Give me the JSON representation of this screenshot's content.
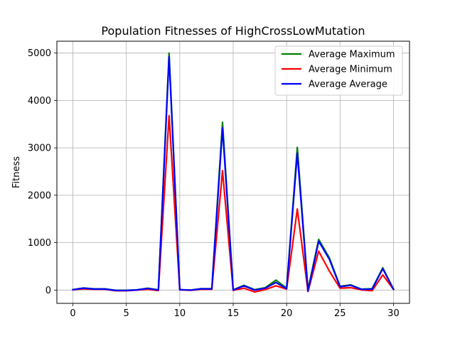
{
  "chart_data": {
    "type": "line",
    "title": "Population Fitnesses of HighCrossLowMutation",
    "xlabel": "",
    "ylabel": "Fitness",
    "xlim": [
      -1.5,
      31.5
    ],
    "ylim": [
      -280,
      5250
    ],
    "xticks": [
      0,
      5,
      10,
      15,
      20,
      25,
      30
    ],
    "yticks": [
      0,
      1000,
      2000,
      3000,
      4000,
      5000
    ],
    "grid": true,
    "legend_position": "top-right",
    "x": [
      0,
      1,
      2,
      3,
      4,
      5,
      6,
      7,
      8,
      9,
      10,
      11,
      12,
      13,
      14,
      15,
      16,
      17,
      18,
      19,
      20,
      21,
      22,
      23,
      24,
      25,
      26,
      27,
      28,
      29,
      30
    ],
    "series": [
      {
        "name": "Average Maximum",
        "color": "#008000",
        "values": [
          10,
          45,
          25,
          25,
          -5,
          -5,
          5,
          40,
          5,
          5000,
          10,
          0,
          30,
          30,
          3540,
          5,
          100,
          10,
          50,
          210,
          40,
          3010,
          10,
          1070,
          680,
          80,
          110,
          20,
          30,
          470,
          20
        ]
      },
      {
        "name": "Average Minimum",
        "color": "#ff0000",
        "values": [
          5,
          25,
          15,
          15,
          -15,
          -15,
          0,
          15,
          -10,
          3680,
          5,
          -5,
          15,
          15,
          2520,
          -5,
          40,
          -40,
          10,
          90,
          20,
          1710,
          -30,
          820,
          400,
          40,
          50,
          5,
          -15,
          320,
          15
        ]
      },
      {
        "name": "Average Average",
        "color": "#0000ff",
        "values": [
          8,
          40,
          22,
          22,
          -8,
          -8,
          3,
          35,
          0,
          4920,
          8,
          -2,
          25,
          25,
          3420,
          0,
          90,
          0,
          40,
          160,
          30,
          2890,
          -20,
          1030,
          650,
          70,
          100,
          15,
          20,
          450,
          18
        ]
      }
    ]
  }
}
